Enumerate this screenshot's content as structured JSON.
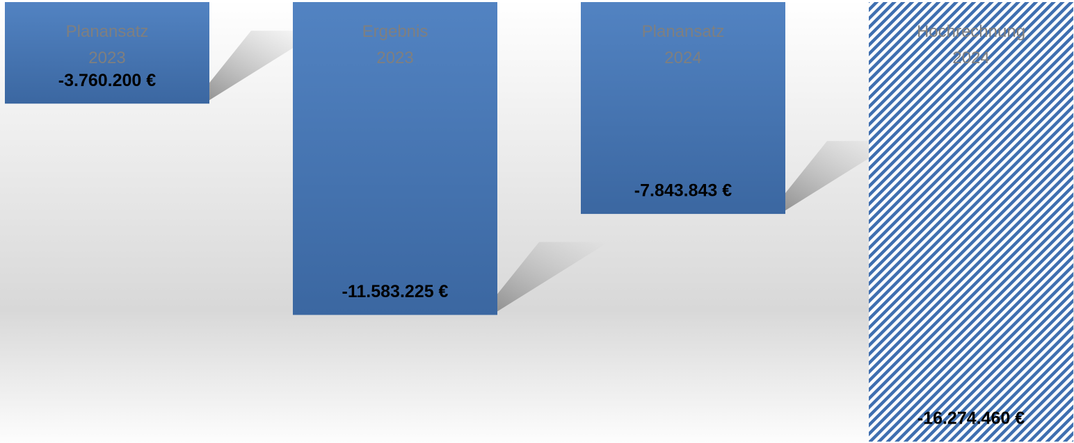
{
  "chart_data": {
    "type": "bar",
    "categories": [
      [
        "Planansatz",
        "2023"
      ],
      [
        "Ergebnis",
        "2023"
      ],
      [
        "Planansatz",
        "2024"
      ],
      [
        "Hochrechnung",
        "2024"
      ]
    ],
    "values": [
      -3760200,
      -11583225,
      -7843843,
      -16274460
    ],
    "value_labels": [
      "-3.760.200 €",
      "-11.583.225 €",
      "-7.843.843 €",
      "-16.274.460 €"
    ],
    "color": "#4f81bd",
    "fill_patterns": [
      "solid",
      "solid",
      "solid",
      "hatched"
    ]
  }
}
